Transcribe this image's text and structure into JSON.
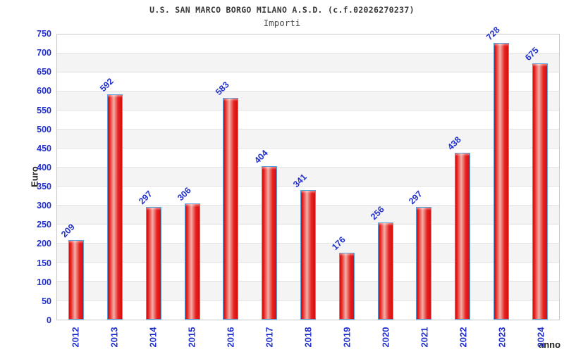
{
  "chart_data": {
    "type": "bar",
    "title": "U.S. SAN MARCO BORGO MILANO A.S.D. (c.f.02026270237)",
    "subtitle": "Importi",
    "xlabel": "anno",
    "ylabel": "Euro",
    "categories": [
      "2012",
      "2013",
      "2014",
      "2015",
      "2016",
      "2017",
      "2018",
      "2019",
      "2020",
      "2021",
      "2022",
      "2023",
      "2024"
    ],
    "values": [
      209,
      592,
      297,
      306,
      583,
      404,
      341,
      176,
      256,
      297,
      438,
      728,
      675
    ],
    "ylim": [
      0,
      750
    ],
    "ytick_step": 50,
    "grid": true,
    "legend": false,
    "bands_alternating": true,
    "colors": {
      "bar_fill": "#e61a1a",
      "bar_highlight": "#f2b0a8",
      "bar_border": "#5b9fd8",
      "tick_label": "#2230cc",
      "value_label": "#2230cc",
      "band_gray": "#f4f4f4",
      "gridline": "#e3e3e3",
      "plot_border": "#c9c9c9",
      "axis_title": "#1e1e1e",
      "title_text": "#383838"
    }
  }
}
